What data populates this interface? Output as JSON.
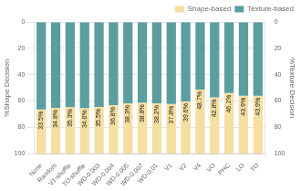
{
  "chart_data": {
    "type": "bar",
    "categories": [
      "None",
      "Random",
      "V1-shuffle",
      "TO-shuffle",
      "WD-0.003",
      "WD-0.004",
      "WD-0.005",
      "WD-0.007",
      "WD-0.01",
      "V1",
      "V2",
      "V4",
      "VO",
      "PHC",
      "LO",
      "TO"
    ],
    "series": [
      {
        "name": "Shape-based",
        "color": "#F5DFA0",
        "values": [
          33.5,
          34.8,
          35.3,
          34.6,
          35.5,
          36.8,
          38.3,
          38.8,
          38.2,
          37.8,
          39.6,
          48.7,
          42.8,
          46.1,
          43.9,
          43.9
        ],
        "value_labels": [
          "33.5%",
          "34.8%",
          "35.3%",
          "34.6%",
          "35.5%",
          "36.8%",
          "38.3%",
          "38.8%",
          "38.2%",
          "37.8%",
          "39.6%",
          "48.7%",
          "42.8%",
          "46.1%",
          "43.9%",
          "43.9%"
        ]
      },
      {
        "name": "Texture-based",
        "color": "#5A9EA0",
        "values": [
          66.5,
          65.2,
          64.7,
          65.4,
          64.5,
          63.2,
          61.7,
          61.2,
          61.8,
          62.2,
          60.4,
          51.3,
          57.2,
          53.9,
          56.1,
          56.1
        ]
      }
    ],
    "stacked": true,
    "data_labels": true,
    "ylabel": "%Shape Decision",
    "y2label": "%Texture Decision",
    "ylim": [
      100,
      0
    ],
    "yticks": [
      0,
      20,
      40,
      60,
      80,
      100
    ],
    "y2lim": [
      100,
      0
    ],
    "y2ticks": [
      0,
      20,
      40,
      60,
      80,
      100
    ],
    "grid": true,
    "legend": "upper right"
  }
}
